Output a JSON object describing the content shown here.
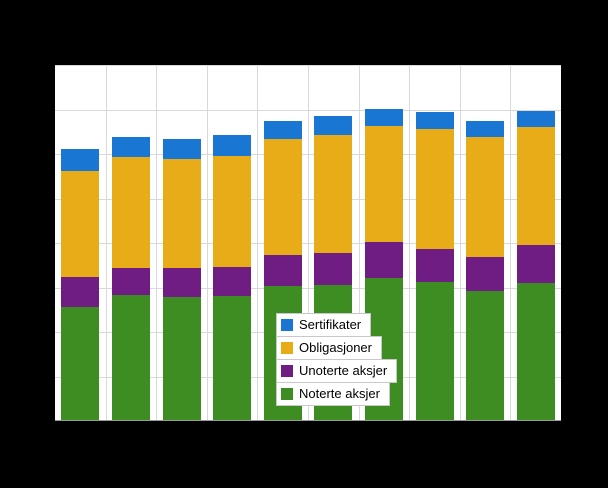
{
  "frame": {
    "background": "#000000",
    "plot_background": "#ffffff"
  },
  "chart_data": {
    "type": "bar",
    "stacked": true,
    "title": "",
    "xlabel": "",
    "ylabel": "",
    "axes_tick_labels_visible": false,
    "note": "Axis tick labels are not visible in the image; values are estimated as percent of plot-area height.",
    "ylim": [
      0,
      100
    ],
    "categories": [
      "",
      "",
      "",
      "",
      "",
      "",
      "",
      "",
      "",
      ""
    ],
    "series": [
      {
        "name": "Noterte aksjer",
        "color": "#3d8d22",
        "values": [
          31.8,
          35.2,
          34.6,
          34.9,
          37.7,
          38.0,
          40.0,
          38.9,
          36.1,
          38.6
        ]
      },
      {
        "name": "Unoterte aksjer",
        "color": "#6f1d82",
        "values": [
          8.5,
          7.6,
          8.2,
          8.2,
          8.7,
          9.0,
          10.1,
          9.0,
          9.6,
          10.7
        ]
      },
      {
        "name": "Obligasjoner",
        "color": "#e8ac19",
        "values": [
          29.6,
          31.0,
          30.4,
          31.0,
          32.4,
          33.2,
          32.4,
          33.8,
          33.8,
          33.0
        ]
      },
      {
        "name": "Sertifikater",
        "color": "#1976d2",
        "values": [
          6.2,
          5.6,
          5.6,
          5.9,
          5.1,
          5.1,
          4.8,
          4.8,
          4.5,
          4.5
        ]
      }
    ],
    "legend": {
      "position": "inside-bottom-center",
      "entries": [
        "Sertifikater",
        "Obligasjoner",
        "Unoterte aksjer",
        "Noterte aksjer"
      ]
    },
    "grid": {
      "horizontal_intervals": 8,
      "vertical_intervals": 10,
      "color": "#d9d9d9"
    }
  }
}
